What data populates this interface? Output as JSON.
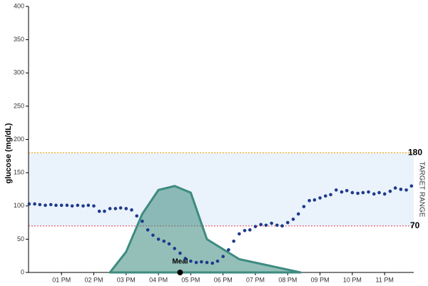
{
  "chart_data": {
    "type": "scatter",
    "y_label": "glucose (mg/dL)",
    "xlim": [
      11.98,
      23.9
    ],
    "ylim": [
      0,
      400
    ],
    "yticks": [
      0,
      50,
      100,
      150,
      200,
      250,
      300,
      350,
      400
    ],
    "xticks": [
      {
        "value": 13,
        "label": "01 PM"
      },
      {
        "value": 14,
        "label": "02 PM"
      },
      {
        "value": 15,
        "label": "03 PM"
      },
      {
        "value": 16,
        "label": "04 PM"
      },
      {
        "value": 17,
        "label": "05 PM"
      },
      {
        "value": 18,
        "label": "06 PM"
      },
      {
        "value": 19,
        "label": "07 PM"
      },
      {
        "value": 20,
        "label": "08 PM"
      },
      {
        "value": 21,
        "label": "09 PM"
      },
      {
        "value": 22,
        "label": "10 PM"
      },
      {
        "value": 23,
        "label": "11 PM"
      }
    ],
    "color": "#1e3a8a",
    "x": [
      12.0,
      12.17,
      12.33,
      12.5,
      12.67,
      12.83,
      13.0,
      13.17,
      13.33,
      13.5,
      13.67,
      13.83,
      14.0,
      14.17,
      14.33,
      14.5,
      14.67,
      14.83,
      15.0,
      15.17,
      15.33,
      15.5,
      15.67,
      15.83,
      16.0,
      16.17,
      16.33,
      16.5,
      16.67,
      16.83,
      17.0,
      17.17,
      17.33,
      17.5,
      17.67,
      17.83,
      18.0,
      18.17,
      18.33,
      18.5,
      18.67,
      18.83,
      19.0,
      19.17,
      19.33,
      19.5,
      19.67,
      19.83,
      20.0,
      20.17,
      20.33,
      20.5,
      20.67,
      20.83,
      21.0,
      21.17,
      21.33,
      21.5,
      21.67,
      21.83,
      22.0,
      22.17,
      22.33,
      22.5,
      22.67,
      22.83,
      23.0,
      23.17,
      23.33,
      23.5,
      23.67,
      23.83
    ],
    "values": [
      103,
      103,
      102,
      101,
      102,
      101,
      101,
      101,
      100,
      101,
      100,
      101,
      100,
      92,
      92,
      96,
      96,
      97,
      96,
      94,
      85,
      77,
      64,
      56,
      50,
      47,
      43,
      36,
      29,
      21,
      17,
      15,
      16,
      15,
      14,
      17,
      24,
      34,
      47,
      58,
      63,
      64,
      69,
      72,
      71,
      74,
      71,
      70,
      75,
      80,
      88,
      99,
      108,
      109,
      112,
      115,
      117,
      124,
      121,
      123,
      120,
      119,
      120,
      121,
      118,
      120,
      118,
      122,
      127,
      125,
      124,
      130
    ],
    "area": {
      "type": "area",
      "color": "#3d8b80",
      "x": [
        14.5,
        15.0,
        15.5,
        16.0,
        16.5,
        17.0,
        17.5,
        18.5,
        20.4
      ],
      "values": [
        0,
        31,
        88,
        124,
        130,
        120,
        50,
        20,
        0
      ]
    },
    "annotations": [
      {
        "label": "Meal",
        "x": 16.67,
        "y": 0
      }
    ],
    "target_range": {
      "label": "TARGET RANGE",
      "low": 70,
      "high": 180,
      "low_color": "#e8788a",
      "high_color": "#f2b632",
      "fill": "#eaf2fb"
    }
  }
}
